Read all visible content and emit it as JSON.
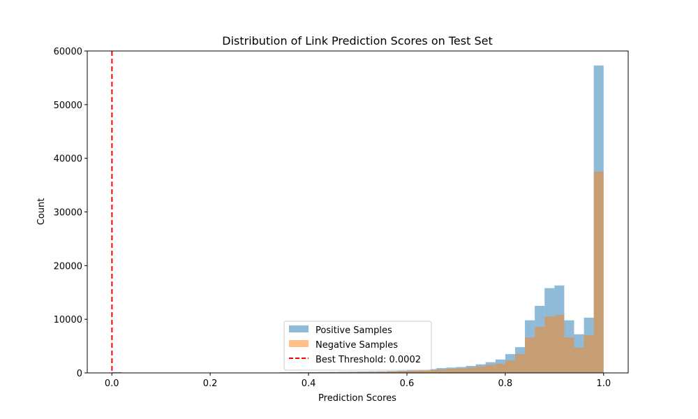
{
  "chart_data": {
    "type": "bar",
    "title": "Distribution of Link Prediction Scores on Test Set",
    "xlabel": "Prediction Scores",
    "ylabel": "Count",
    "xlim": [
      -0.05,
      1.05
    ],
    "ylim": [
      0,
      60000
    ],
    "xticks": [
      0.0,
      0.2,
      0.4,
      0.6,
      0.8,
      1.0
    ],
    "xtick_labels": [
      "0.0",
      "0.2",
      "0.4",
      "0.6",
      "0.8",
      "1.0"
    ],
    "yticks": [
      0,
      10000,
      20000,
      30000,
      40000,
      50000,
      60000
    ],
    "ytick_labels": [
      "0",
      "10000",
      "20000",
      "30000",
      "40000",
      "50000",
      "60000"
    ],
    "bins": {
      "start": 0.0,
      "width": 0.02,
      "count": 50
    },
    "legend_position": "lower-center",
    "grid": false,
    "series": [
      {
        "name": "Positive Samples",
        "color": "#1f77b4",
        "alpha": 0.5,
        "values": [
          150,
          20,
          20,
          20,
          20,
          20,
          20,
          20,
          20,
          20,
          20,
          20,
          20,
          20,
          20,
          20,
          50,
          100,
          120,
          150,
          150,
          160,
          180,
          200,
          220,
          250,
          280,
          300,
          350,
          400,
          500,
          600,
          700,
          900,
          1000,
          1100,
          1300,
          1600,
          2000,
          2500,
          3500,
          4800,
          9800,
          12500,
          15800,
          16300,
          9800,
          7200,
          10300,
          57300
        ]
      },
      {
        "name": "Negative Samples",
        "color": "#ff7f0e",
        "alpha": 0.5,
        "values": [
          20,
          10,
          10,
          10,
          10,
          10,
          10,
          10,
          10,
          10,
          10,
          10,
          10,
          10,
          10,
          10,
          30,
          60,
          80,
          100,
          100,
          110,
          120,
          140,
          160,
          180,
          200,
          220,
          260,
          300,
          350,
          450,
          550,
          650,
          750,
          850,
          1000,
          1200,
          1500,
          1700,
          2300,
          3500,
          6600,
          8600,
          10500,
          10800,
          6600,
          4700,
          7000,
          37500
        ]
      }
    ],
    "threshold": {
      "label": "Best Threshold: 0.0002",
      "value": 0.0002,
      "color": "#ff0000",
      "style": "dashed"
    }
  }
}
